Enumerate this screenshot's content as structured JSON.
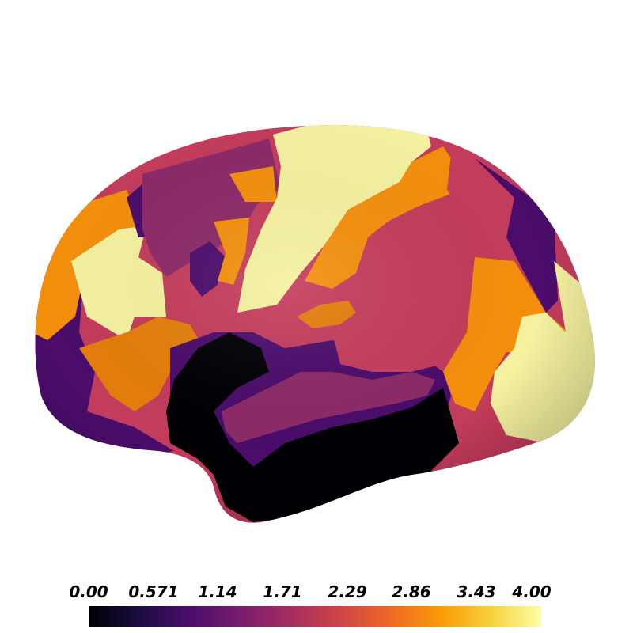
{
  "colorbar": {
    "colormap": "inferno",
    "range": [
      0.0,
      4.0
    ],
    "ticks": [
      "0.00",
      "0.571",
      "1.14",
      "1.71",
      "2.29",
      "2.86",
      "3.43",
      "4.00"
    ],
    "stops": [
      "#000004",
      "#1b0c41",
      "#4a0c6b",
      "#781c6d",
      "#a52c60",
      "#cf4446",
      "#ed6925",
      "#fb9b06",
      "#f7d13d",
      "#fcffa4"
    ]
  },
  "colors": {
    "level_0": "#000004",
    "level_1": "#4b0c6b",
    "level_2": "#8c2a68",
    "level_3": "#c43c5c",
    "level_4": "#f48f0c",
    "level_4_orange_dark": "#e47e0b",
    "level_max": "#f5f2a0"
  }
}
